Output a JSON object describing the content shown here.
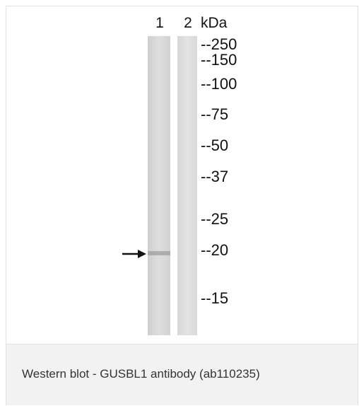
{
  "figure": {
    "lane_labels": [
      "1",
      "2"
    ],
    "unit_label": "kDa",
    "markers": [
      "--250",
      "--150",
      "--100",
      "--75",
      "--50",
      "--37",
      "--25",
      "--20",
      "--15"
    ]
  },
  "caption": "Western blot - GUSBL1 antibody (ab110235)"
}
